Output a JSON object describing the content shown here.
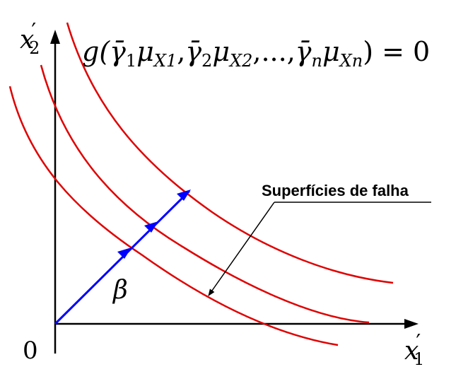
{
  "equation": {
    "prefix": "g(",
    "terms": [
      {
        "gamma_sub": "1",
        "mu_sub": "X1"
      },
      {
        "gamma_sub": "2",
        "mu_sub": "X2"
      },
      {
        "separator": ",...,"
      },
      {
        "gamma_sub": "n",
        "mu_sub": "Xn"
      }
    ],
    "suffix": ") = 0"
  },
  "axes": {
    "x_label_main": "x",
    "x_label_prime": "′",
    "x_label_sub": "1",
    "y_label_main": "x",
    "y_label_prime": "′",
    "y_label_sub": "2",
    "origin_label": "0"
  },
  "beta_label": "β",
  "surfaces_label": "Superfícies de falha",
  "colors": {
    "curves": "#e00000",
    "vector": "#0000ff",
    "axes": "#000000"
  },
  "curves_count": 3
}
